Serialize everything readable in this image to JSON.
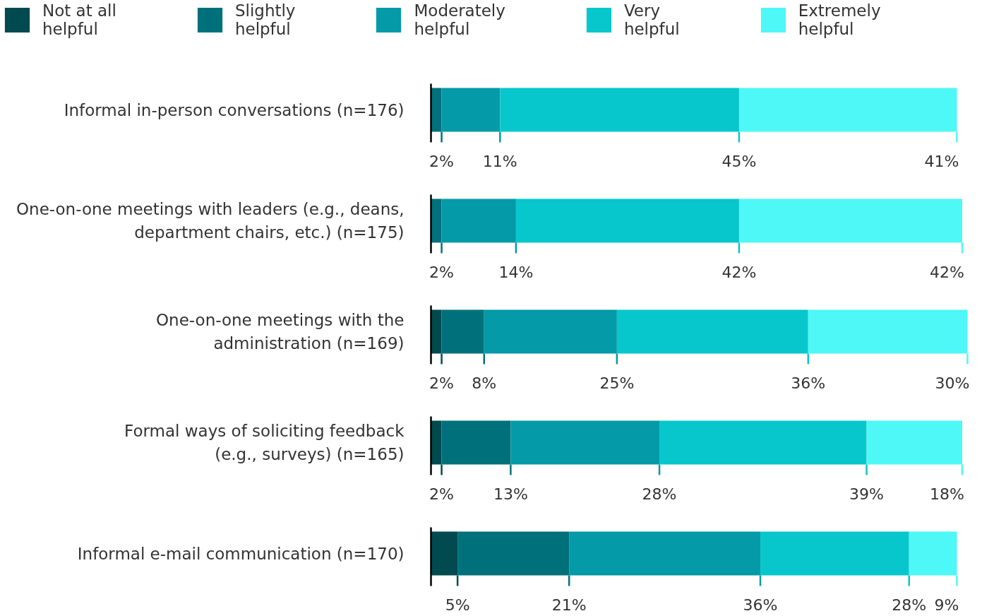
{
  "chart_data": {
    "type": "bar",
    "orientation": "horizontal",
    "stacked": true,
    "legend": "top",
    "categories": [
      "Informal in-person conversations (n=176)",
      "One-on-one meetings with leaders (e.g., deans,\ndepartment chairs, etc.) (n=175)",
      "One-on-one meetings with the\nadministration (n=169)",
      "Formal ways of soliciting feedback\n(e.g., surveys) (n=165)",
      "Informal e-mail communication (n=170)"
    ],
    "series": [
      {
        "name": "Not at all helpful",
        "color": "#004a50",
        "values": [
          0,
          0,
          2,
          2,
          5
        ],
        "value_labels": [
          null,
          null,
          "2%",
          "2%",
          "5%"
        ]
      },
      {
        "name": "Slightly helpful",
        "color": "#00717a",
        "values": [
          2,
          2,
          8,
          13,
          21
        ],
        "value_labels": [
          "2%",
          "2%",
          "8%",
          "13%",
          "21%"
        ]
      },
      {
        "name": "Moderately helpful",
        "color": "#049aa8",
        "values": [
          11,
          14,
          25,
          28,
          36
        ],
        "value_labels": [
          "11%",
          "14%",
          "25%",
          "28%",
          "36%"
        ]
      },
      {
        "name": "Very helpful",
        "color": "#07c7cc",
        "values": [
          45,
          42,
          36,
          39,
          28
        ],
        "value_labels": [
          "45%",
          "42%",
          "36%",
          "39%",
          "28%"
        ]
      },
      {
        "name": "Extremely helpful",
        "color": "#4ef8f6",
        "values": [
          41,
          42,
          30,
          18,
          9
        ],
        "value_labels": [
          "41%",
          "42%",
          "30%",
          "18%",
          "9%"
        ]
      }
    ]
  }
}
